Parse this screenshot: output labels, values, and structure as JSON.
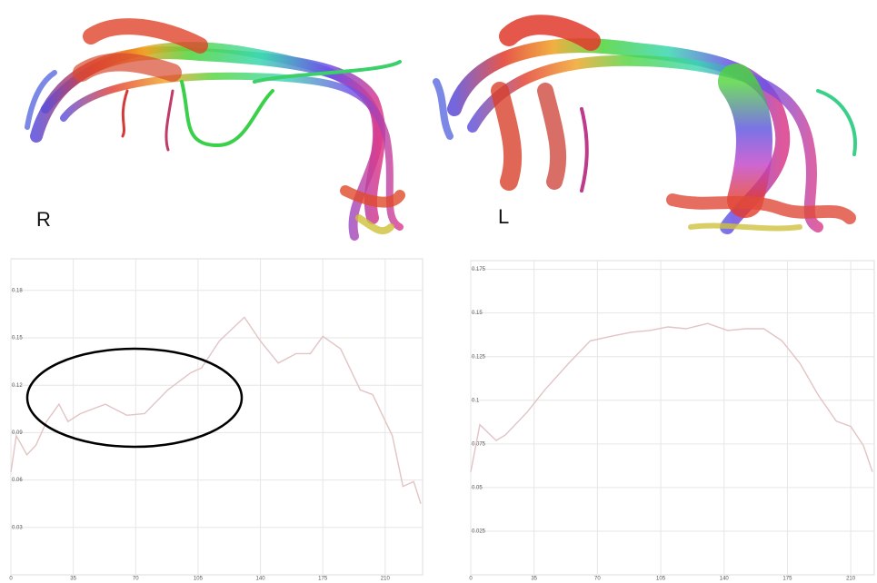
{
  "chart_data": [
    {
      "type": "line",
      "panel_label": "R",
      "x": [
        0,
        3,
        9,
        14,
        20,
        27,
        32,
        39,
        53,
        65,
        75,
        88,
        101,
        107,
        117,
        131,
        140,
        150,
        160,
        168,
        175,
        185,
        196,
        203,
        214,
        220,
        226,
        230
      ],
      "series": [
        {
          "color": "#e2c4c4",
          "values": [
            0.065,
            0.088,
            0.076,
            0.082,
            0.097,
            0.108,
            0.097,
            0.102,
            0.108,
            0.101,
            0.102,
            0.117,
            0.128,
            0.131,
            0.148,
            0.163,
            0.148,
            0.134,
            0.14,
            0.14,
            0.151,
            0.143,
            0.117,
            0.114,
            0.088,
            0.056,
            0.059,
            0.045
          ]
        }
      ],
      "xlim": [
        0,
        231
      ],
      "xticks": [
        0,
        35,
        70,
        105,
        140,
        175,
        210
      ],
      "ylim": [
        0,
        0.2
      ],
      "yticks": [
        0.03,
        0.06,
        0.09,
        0.12,
        0.15,
        0.18
      ],
      "grid": true
    },
    {
      "type": "line",
      "panel_label": "L",
      "x": [
        0,
        5,
        14,
        19,
        31,
        41,
        54,
        66,
        79,
        89,
        99,
        109,
        119,
        131,
        142,
        152,
        162,
        172,
        182,
        192,
        202,
        210,
        217,
        222
      ],
      "series": [
        {
          "color": "#e2c4c4",
          "values": [
            0.059,
            0.086,
            0.077,
            0.08,
            0.093,
            0.106,
            0.121,
            0.134,
            0.137,
            0.139,
            0.14,
            0.142,
            0.141,
            0.144,
            0.14,
            0.141,
            0.141,
            0.134,
            0.121,
            0.103,
            0.088,
            0.085,
            0.074,
            0.059
          ]
        }
      ],
      "xlim": [
        0,
        223
      ],
      "xticks": [
        0,
        35,
        70,
        105,
        140,
        175,
        210
      ],
      "ylim": [
        0,
        0.18
      ],
      "yticks": [
        0.025,
        0.05,
        0.075,
        0.1,
        0.125,
        0.15,
        0.175
      ],
      "grid": true
    }
  ]
}
